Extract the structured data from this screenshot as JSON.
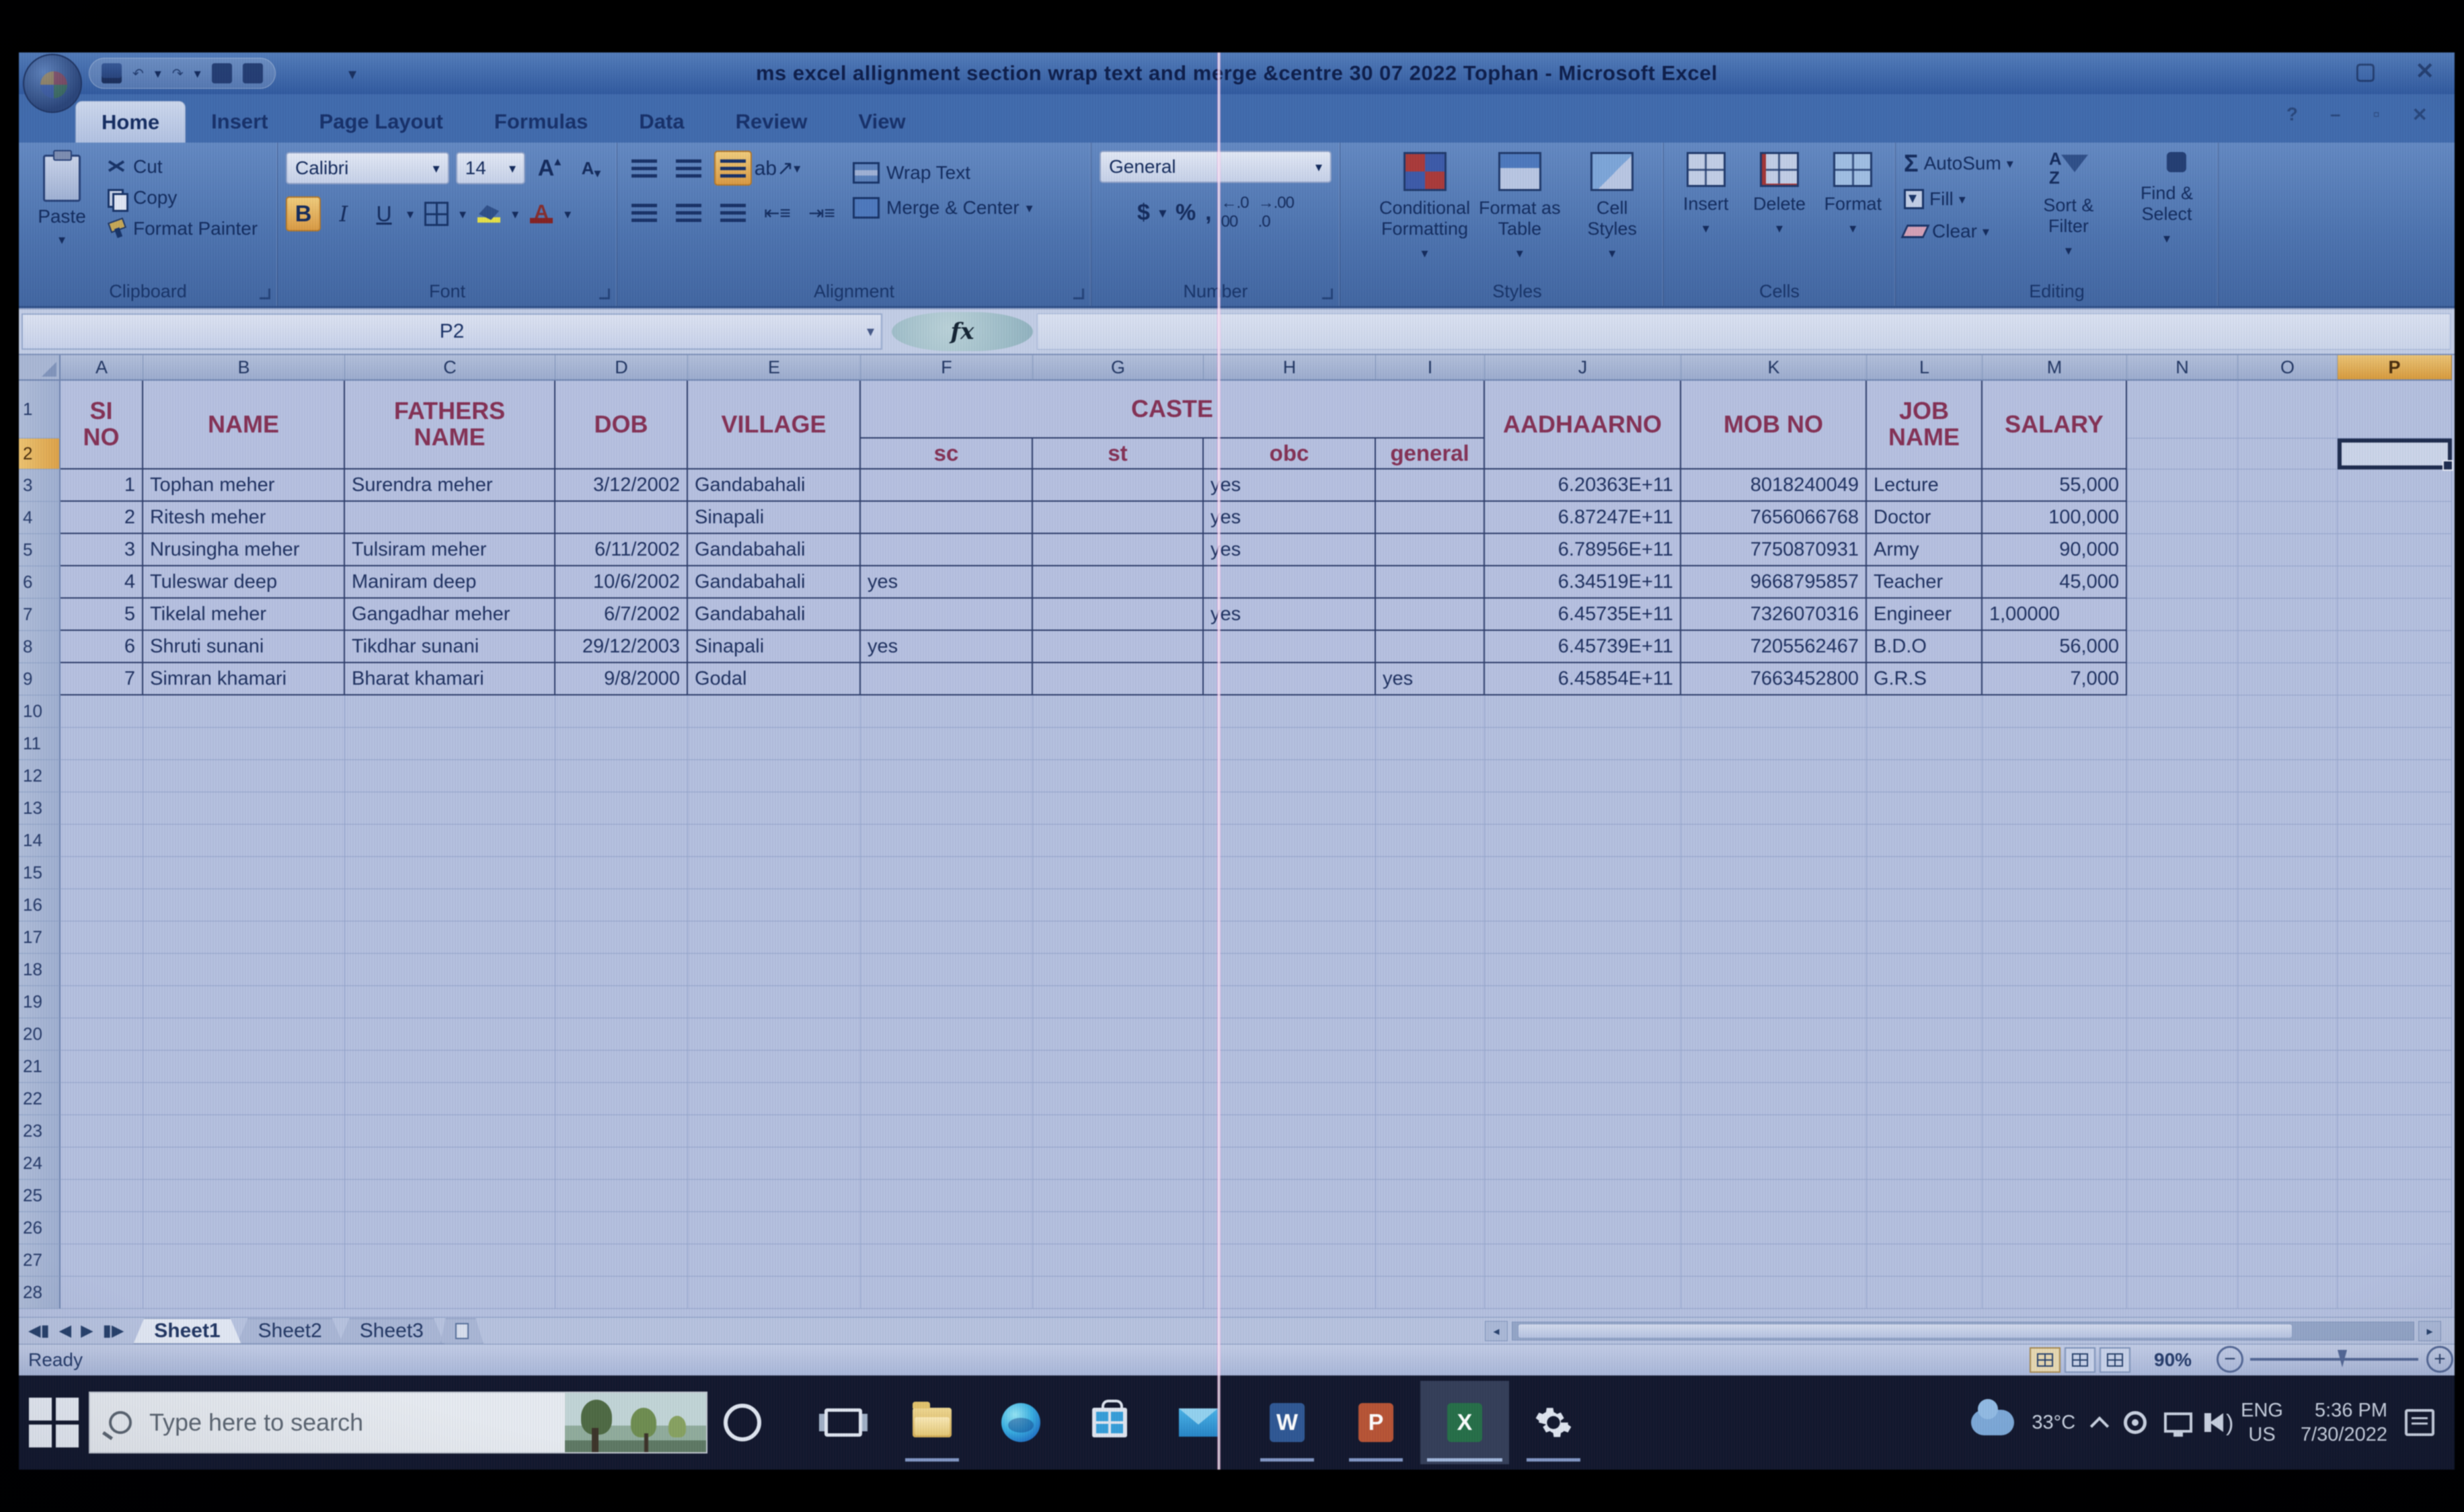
{
  "window": {
    "title": "ms excel allignment section wrap text and merge &centre 30 07 2022 Tophan - Microsoft Excel"
  },
  "ribbon": {
    "tabs": [
      "Home",
      "Insert",
      "Page Layout",
      "Formulas",
      "Data",
      "Review",
      "View"
    ],
    "active_tab": "Home",
    "clipboard": {
      "group": "Clipboard",
      "paste": "Paste",
      "cut": "Cut",
      "copy": "Copy",
      "format_painter": "Format Painter"
    },
    "font": {
      "group": "Font",
      "family": "Calibri",
      "size": "14"
    },
    "alignment": {
      "group": "Alignment",
      "wrap_text": "Wrap Text",
      "merge_center": "Merge & Center"
    },
    "number": {
      "group": "Number",
      "format": "General"
    },
    "styles": {
      "group": "Styles",
      "conditional": "Conditional Formatting",
      "format_table": "Format as Table",
      "cell_styles": "Cell Styles"
    },
    "cells": {
      "group": "Cells",
      "insert": "Insert",
      "delete": "Delete",
      "format": "Format"
    },
    "editing": {
      "group": "Editing",
      "autosum": "AutoSum",
      "fill": "Fill",
      "clear": "Clear",
      "sort": "Sort & Filter",
      "find": "Find & Select"
    }
  },
  "formula_bar": {
    "name_box": "P2",
    "fx": "fx"
  },
  "sheet": {
    "columns": [
      "A",
      "B",
      "C",
      "D",
      "E",
      "F",
      "G",
      "H",
      "I",
      "J",
      "K",
      "L",
      "M",
      "N",
      "O",
      "P"
    ],
    "selected_column": "P",
    "selected_row": "2",
    "selected_cell": "P2",
    "row_count": 28,
    "header": {
      "si_no": "SI NO",
      "name": "NAME",
      "fathers_name": "FATHERS NAME",
      "dob": "DOB",
      "village": "VILLAGE",
      "caste": "CASTE",
      "caste_sub": [
        "sc",
        "st",
        "obc",
        "general"
      ],
      "aadhaar": "AADHAARNO",
      "mob": "MOB NO",
      "job": "JOB NAME",
      "salary": "SALARY"
    },
    "rows": [
      {
        "si": "1",
        "name": "Tophan meher",
        "father": "Surendra meher",
        "dob": "3/12/2002",
        "village": "Gandabahali",
        "sc": "",
        "st": "",
        "obc": "yes",
        "general": "",
        "aadhaar": "6.20363E+11",
        "mob": "8018240049",
        "job": "Lecture",
        "salary": "55,000"
      },
      {
        "si": "2",
        "name": "Ritesh meher",
        "father": "",
        "dob": "",
        "village": "Sinapali",
        "sc": "",
        "st": "",
        "obc": "yes",
        "general": "",
        "aadhaar": "6.87247E+11",
        "mob": "7656066768",
        "job": "Doctor",
        "salary": "100,000"
      },
      {
        "si": "3",
        "name": "Nrusingha meher",
        "father": "Tulsiram meher",
        "dob": "6/11/2002",
        "village": "Gandabahali",
        "sc": "",
        "st": "",
        "obc": "yes",
        "general": "",
        "aadhaar": "6.78956E+11",
        "mob": "7750870931",
        "job": "Army",
        "salary": "90,000"
      },
      {
        "si": "4",
        "name": "Tuleswar deep",
        "father": "Maniram deep",
        "dob": "10/6/2002",
        "village": "Gandabahali",
        "sc": "yes",
        "st": "",
        "obc": "",
        "general": "",
        "aadhaar": "6.34519E+11",
        "mob": "9668795857",
        "job": "Teacher",
        "salary": "45,000"
      },
      {
        "si": "5",
        "name": "Tikelal meher",
        "father": "Gangadhar meher",
        "dob": "6/7/2002",
        "village": "Gandabahali",
        "sc": "",
        "st": "",
        "obc": "yes",
        "general": "",
        "aadhaar": "6.45735E+11",
        "mob": "7326070316",
        "job": "Engineer",
        "salary": "1,00000",
        "salary_align": "left"
      },
      {
        "si": "6",
        "name": "Shruti sunani",
        "father": "Tikdhar sunani",
        "dob": "29/12/2003",
        "village": "Sinapali",
        "sc": "yes",
        "st": "",
        "obc": "",
        "general": "",
        "aadhaar": "6.45739E+11",
        "mob": "7205562467",
        "job": "B.D.O",
        "salary": "56,000"
      },
      {
        "si": "7",
        "name": "Simran khamari",
        "father": "Bharat khamari",
        "dob": "9/8/2000",
        "village": "Godal",
        "sc": "",
        "st": "",
        "obc": "",
        "general": "yes",
        "aadhaar": "6.45854E+11",
        "mob": "7663452800",
        "job": "G.R.S",
        "salary": "7,000"
      }
    ]
  },
  "sheet_tabs": {
    "sheets": [
      "Sheet1",
      "Sheet2",
      "Sheet3"
    ],
    "active": "Sheet1"
  },
  "status_bar": {
    "mode": "Ready",
    "zoom": "90%"
  },
  "taskbar": {
    "search_placeholder": "Type here to search",
    "apps": [
      {
        "name": "task-view-icon",
        "running": false,
        "active": false
      },
      {
        "name": "file-explorer-icon",
        "running": true,
        "active": false
      },
      {
        "name": "edge-icon",
        "running": false,
        "active": false
      },
      {
        "name": "store-icon",
        "running": false,
        "active": false
      },
      {
        "name": "mail-icon",
        "running": false,
        "active": false
      },
      {
        "name": "word-icon",
        "running": true,
        "active": false
      },
      {
        "name": "powerpoint-icon",
        "running": true,
        "active": false
      },
      {
        "name": "excel-icon",
        "running": true,
        "active": true
      },
      {
        "name": "settings-icon",
        "running": true,
        "active": false
      }
    ],
    "tray": {
      "temperature": "33°C",
      "lang": "ENG",
      "region": "US",
      "time": "5:36 PM",
      "date": "7/30/2022"
    }
  },
  "colors": {
    "accent_orange": "#e09a3a",
    "header_maroon": "#8a2e55",
    "title_blue": "#2f5ca8",
    "grid_bg": "#b4c1e3",
    "taskbar_bg": "#10172e"
  }
}
